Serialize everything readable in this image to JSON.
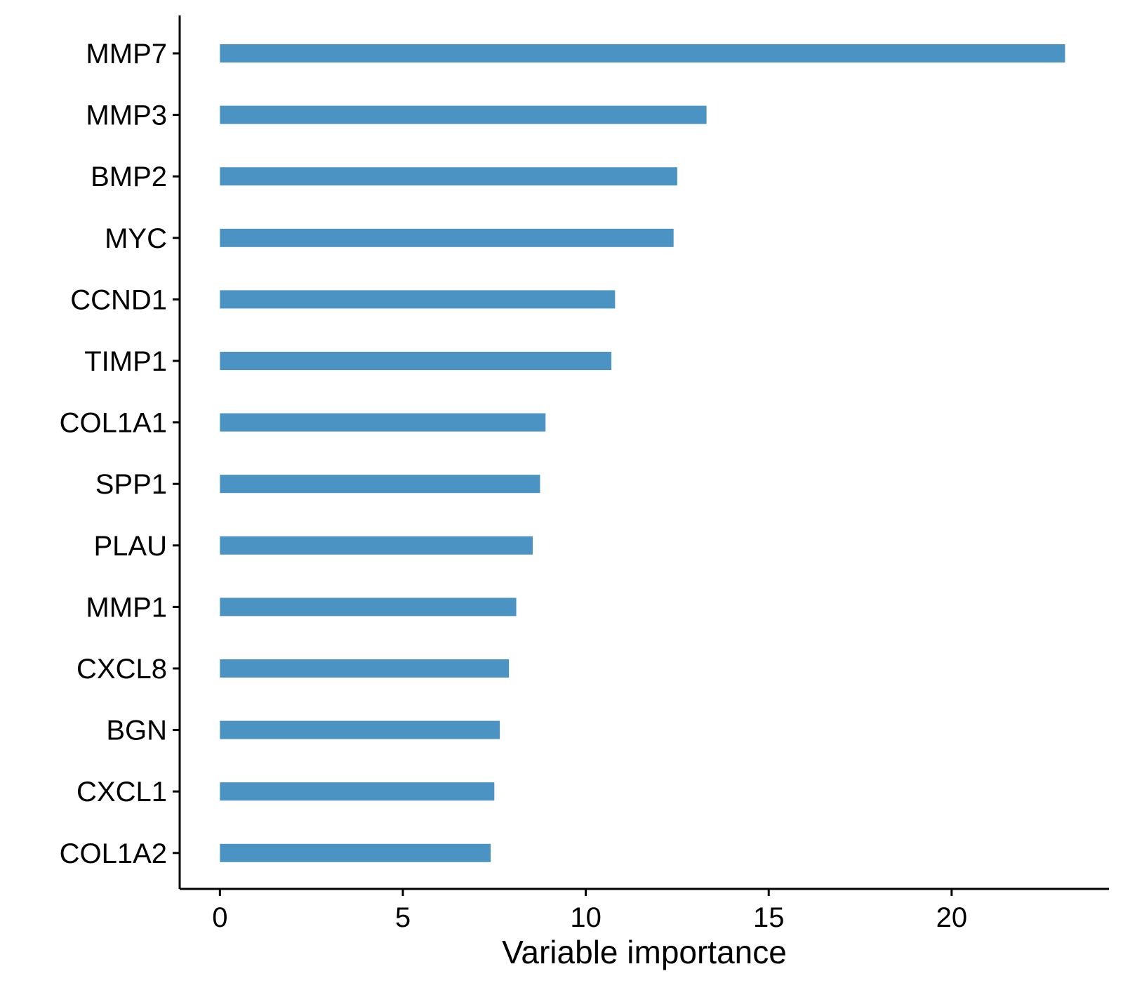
{
  "chart_data": {
    "type": "bar",
    "orientation": "horizontal",
    "title": "",
    "xlabel": "Variable importance",
    "ylabel": "",
    "categories": [
      "MMP7",
      "MMP3",
      "BMP2",
      "MYC",
      "CCND1",
      "TIMP1",
      "COL1A1",
      "SPP1",
      "PLAU",
      "MMP1",
      "CXCL8",
      "BGN",
      "CXCL1",
      "COL1A2"
    ],
    "values": [
      23.1,
      13.3,
      12.5,
      12.4,
      10.8,
      10.7,
      8.9,
      8.75,
      8.55,
      8.1,
      7.9,
      7.65,
      7.5,
      7.4
    ],
    "xlim": [
      -1.1,
      24.3
    ],
    "xticks": [
      0,
      5,
      10,
      15,
      20
    ],
    "xtick_labels": [
      "0",
      "5",
      "10",
      "15",
      "20"
    ],
    "bar_color": "#4b93c3",
    "grid": false,
    "legend": "none"
  }
}
